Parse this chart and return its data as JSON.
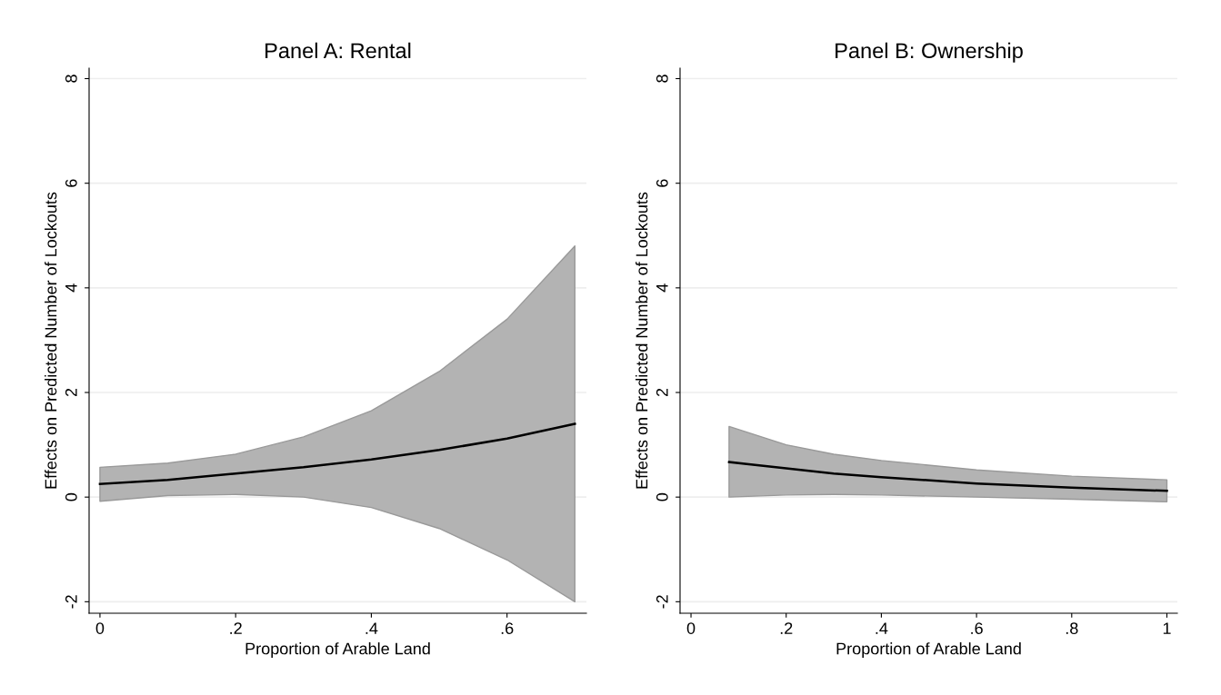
{
  "chart_data": [
    {
      "type": "line",
      "title": "Panel A: Rental",
      "xlabel": "Proportion of Arable Land",
      "ylabel": "Effects on Predicted Number of Lockouts",
      "x": [
        0,
        0.1,
        0.2,
        0.3,
        0.4,
        0.5,
        0.6,
        0.7
      ],
      "series": [
        {
          "color": "#000000",
          "values": [
            0.25,
            0.33,
            0.45,
            0.57,
            0.72,
            0.9,
            1.12,
            1.4
          ],
          "lower": [
            -0.08,
            0.03,
            0.05,
            0.0,
            -0.2,
            -0.6,
            -1.2,
            -2.0
          ],
          "upper": [
            0.57,
            0.65,
            0.82,
            1.15,
            1.65,
            2.4,
            3.4,
            4.8
          ]
        }
      ],
      "xlim": [
        -0.016,
        0.717
      ],
      "ylim": [
        -2.22,
        8.2
      ],
      "xticks": [
        0,
        {
          "value": 0.2,
          "label": ".2"
        },
        {
          "value": 0.4,
          "label": ".4"
        },
        {
          "value": 0.6,
          "label": ".6"
        }
      ],
      "yticks": [
        {
          "value": -2,
          "label": "-2"
        },
        0,
        2,
        4,
        6,
        8
      ],
      "grid": "y",
      "marker": "none",
      "line_style": "solid"
    },
    {
      "type": "line",
      "title": "Panel B: Ownership",
      "xlabel": "Proportion of Arable Land",
      "ylabel": "Effects on Predicted Number of Lockouts",
      "x": [
        0.08,
        0.2,
        0.3,
        0.4,
        0.6,
        0.8,
        1.0
      ],
      "series": [
        {
          "color": "#000000",
          "values": [
            0.67,
            0.55,
            0.45,
            0.38,
            0.26,
            0.18,
            0.12
          ],
          "lower": [
            0.0,
            0.04,
            0.05,
            0.04,
            0.0,
            -0.04,
            -0.09
          ],
          "upper": [
            1.35,
            1.0,
            0.82,
            0.7,
            0.52,
            0.4,
            0.33
          ]
        }
      ],
      "xlim": [
        -0.023,
        1.022
      ],
      "ylim": [
        -2.22,
        8.2
      ],
      "xticks": [
        0,
        {
          "value": 0.2,
          "label": ".2"
        },
        {
          "value": 0.4,
          "label": ".4"
        },
        {
          "value": 0.6,
          "label": ".6"
        },
        {
          "value": 0.8,
          "label": ".8"
        },
        1
      ],
      "yticks": [
        {
          "value": -2,
          "label": "-2"
        },
        0,
        2,
        4,
        6,
        8
      ],
      "grid": "y",
      "marker": "none",
      "line_style": "solid"
    }
  ]
}
